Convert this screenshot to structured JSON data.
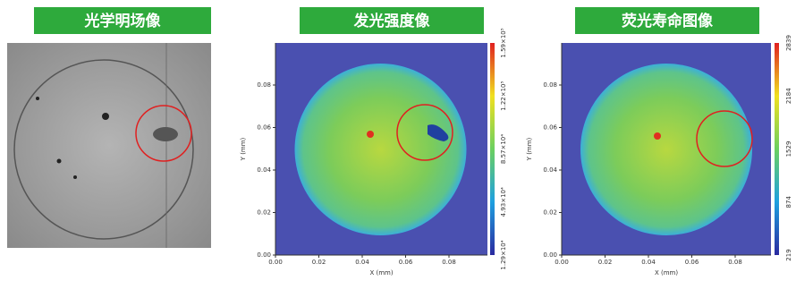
{
  "panels": [
    {
      "title": "光学明场像"
    },
    {
      "title": "发光强度像",
      "x_label": "X (mm)",
      "y_label": "Y (mm)",
      "x_ticks": [
        "0.00",
        "0.02",
        "0.04",
        "0.06",
        "0.08"
      ],
      "y_ticks": [
        "0.00",
        "0.02",
        "0.04",
        "0.06",
        "0.08"
      ],
      "colorbar_ticks": [
        "1.29×10⁴",
        "4.93×10⁴",
        "8.57×10⁴",
        "1.22×10⁵",
        "1.59×10⁵"
      ]
    },
    {
      "title": "荧光寿命图像",
      "x_label": "X (mm)",
      "y_label": "Y (mm)",
      "x_ticks": [
        "0.00",
        "0.02",
        "0.04",
        "0.06",
        "0.08"
      ],
      "y_ticks": [
        "0.00",
        "0.02",
        "0.04",
        "0.06",
        "0.08"
      ],
      "colorbar_ticks": [
        "219",
        "874",
        "1529",
        "2184",
        "2839"
      ]
    }
  ]
}
